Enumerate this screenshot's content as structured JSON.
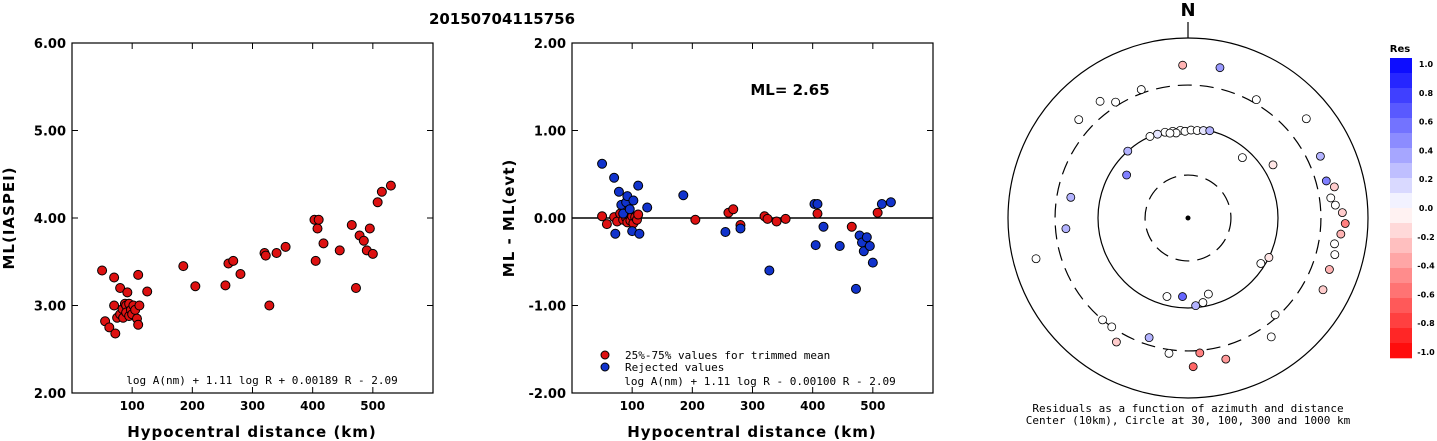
{
  "figure_title": "20150704115756",
  "chart_data": [
    {
      "type": "scatter",
      "id": "left",
      "xlabel": "Hypocentral distance (km)",
      "ylabel": "ML(IASPEI)",
      "xlim": [
        0,
        600
      ],
      "ylim": [
        2.0,
        6.0
      ],
      "xticks": [
        {
          "v": 100,
          "l": "100"
        },
        {
          "v": 200,
          "l": "200"
        },
        {
          "v": 300,
          "l": "300"
        },
        {
          "v": 400,
          "l": "400"
        },
        {
          "v": 500,
          "l": "500"
        }
      ],
      "yticks": [
        {
          "v": 2,
          "l": "2.00"
        },
        {
          "v": 3,
          "l": "3.00"
        },
        {
          "v": 4,
          "l": "4.00"
        },
        {
          "v": 5,
          "l": "5.00"
        },
        {
          "v": 6,
          "l": "6.00"
        }
      ],
      "formula": "log A(nm) + 1.11 log R + 0.00189 R - 2.09",
      "points": [
        [
          50,
          3.4
        ],
        [
          55,
          2.82
        ],
        [
          62,
          2.75
        ],
        [
          70,
          3.32
        ],
        [
          70,
          3.0
        ],
        [
          72,
          2.68
        ],
        [
          75,
          2.86
        ],
        [
          80,
          3.2
        ],
        [
          80,
          2.9
        ],
        [
          84,
          2.96
        ],
        [
          85,
          2.86
        ],
        [
          88,
          3.02
        ],
        [
          90,
          3.0
        ],
        [
          90,
          2.92
        ],
        [
          92,
          3.15
        ],
        [
          95,
          3.02
        ],
        [
          95,
          2.88
        ],
        [
          98,
          2.95
        ],
        [
          100,
          2.9
        ],
        [
          102,
          3.0
        ],
        [
          105,
          2.95
        ],
        [
          108,
          2.85
        ],
        [
          110,
          3.35
        ],
        [
          110,
          2.78
        ],
        [
          112,
          3.0
        ],
        [
          125,
          3.16
        ],
        [
          185,
          3.45
        ],
        [
          205,
          3.22
        ],
        [
          255,
          3.23
        ],
        [
          260,
          3.48
        ],
        [
          268,
          3.51
        ],
        [
          280,
          3.36
        ],
        [
          320,
          3.6
        ],
        [
          322,
          3.57
        ],
        [
          328,
          3.0
        ],
        [
          340,
          3.6
        ],
        [
          355,
          3.67
        ],
        [
          403,
          3.98
        ],
        [
          405,
          3.51
        ],
        [
          408,
          3.88
        ],
        [
          410,
          3.98
        ],
        [
          418,
          3.71
        ],
        [
          445,
          3.63
        ],
        [
          465,
          3.92
        ],
        [
          472,
          3.2
        ],
        [
          478,
          3.8
        ],
        [
          485,
          3.74
        ],
        [
          490,
          3.63
        ],
        [
          495,
          3.88
        ],
        [
          500,
          3.59
        ],
        [
          508,
          4.18
        ],
        [
          515,
          4.3
        ],
        [
          530,
          4.37
        ]
      ]
    },
    {
      "type": "scatter",
      "id": "middle",
      "xlabel": "Hypocentral distance (km)",
      "ylabel": "ML - ML(evt)",
      "xlim": [
        0,
        600
      ],
      "ylim": [
        -2.0,
        2.0
      ],
      "xticks": [
        {
          "v": 100,
          "l": "100"
        },
        {
          "v": 200,
          "l": "200"
        },
        {
          "v": 300,
          "l": "300"
        },
        {
          "v": 400,
          "l": "400"
        },
        {
          "v": 500,
          "l": "500"
        }
      ],
      "yticks": [
        {
          "v": -2,
          "l": "-2.00"
        },
        {
          "v": -1,
          "l": "-1.00"
        },
        {
          "v": 0,
          "l": "0.00"
        },
        {
          "v": 1,
          "l": "1.00"
        },
        {
          "v": 2,
          "l": "2.00"
        }
      ],
      "annotation": "ML= 2.65",
      "formula": "log A(nm) + 1.11 log R - 0.00100 R - 2.09",
      "reference_line": 0,
      "legend": [
        {
          "label": "25%-75% values for trimmed mean",
          "color": "#dd1111"
        },
        {
          "label": "Rejected values",
          "color": "#1133cc"
        }
      ],
      "series": [
        {
          "name": "25%-75% values for trimmed mean",
          "color": "#dd1111",
          "points": [
            [
              50,
              0.02
            ],
            [
              58,
              -0.07
            ],
            [
              70,
              0.01
            ],
            [
              75,
              -0.04
            ],
            [
              80,
              0.05
            ],
            [
              85,
              -0.02
            ],
            [
              88,
              0.1
            ],
            [
              90,
              0.0
            ],
            [
              92,
              -0.05
            ],
            [
              95,
              0.06
            ],
            [
              97,
              -0.03
            ],
            [
              100,
              0.02
            ],
            [
              102,
              -0.06
            ],
            [
              105,
              0.01
            ],
            [
              108,
              -0.02
            ],
            [
              110,
              0.04
            ],
            [
              205,
              -0.02
            ],
            [
              260,
              0.06
            ],
            [
              268,
              0.1
            ],
            [
              280,
              -0.08
            ],
            [
              320,
              0.02
            ],
            [
              325,
              -0.01
            ],
            [
              340,
              -0.04
            ],
            [
              355,
              -0.01
            ],
            [
              408,
              0.05
            ],
            [
              465,
              -0.1
            ],
            [
              508,
              0.06
            ]
          ]
        },
        {
          "name": "Rejected values",
          "color": "#1133cc",
          "points": [
            [
              50,
              0.62
            ],
            [
              70,
              0.46
            ],
            [
              72,
              -0.18
            ],
            [
              78,
              0.3
            ],
            [
              82,
              0.15
            ],
            [
              85,
              0.05
            ],
            [
              90,
              0.18
            ],
            [
              92,
              0.25
            ],
            [
              96,
              0.1
            ],
            [
              100,
              -0.15
            ],
            [
              102,
              0.2
            ],
            [
              110,
              0.37
            ],
            [
              112,
              -0.18
            ],
            [
              125,
              0.12
            ],
            [
              185,
              0.26
            ],
            [
              255,
              -0.16
            ],
            [
              280,
              -0.12
            ],
            [
              328,
              -0.6
            ],
            [
              403,
              0.16
            ],
            [
              405,
              -0.31
            ],
            [
              408,
              0.16
            ],
            [
              418,
              -0.1
            ],
            [
              445,
              -0.32
            ],
            [
              472,
              -0.81
            ],
            [
              478,
              -0.2
            ],
            [
              482,
              -0.28
            ],
            [
              485,
              -0.38
            ],
            [
              490,
              -0.22
            ],
            [
              495,
              -0.32
            ],
            [
              500,
              -0.51
            ],
            [
              515,
              0.16
            ],
            [
              530,
              0.18
            ]
          ]
        }
      ]
    },
    {
      "type": "polar-scatter",
      "id": "azimuth",
      "north_label": "N",
      "caption_line1": "Residuals as a function of azimuth and distance",
      "caption_line2": "Center (10km), Circle at 30, 100, 300 and 1000 km",
      "rings_km": [
        30,
        100,
        300,
        1000
      ],
      "ring_styles": [
        "dashed",
        "solid",
        "dashed",
        "solid"
      ],
      "colorbar": {
        "title": "Res",
        "ticks": [
          "1.0",
          "0.8",
          "0.6",
          "0.4",
          "0.2",
          "0.0",
          "-0.2",
          "-0.4",
          "-0.6",
          "-0.8",
          "-1.0"
        ],
        "max_color": "#0000ff",
        "zero_color": "#ffffff",
        "min_color": "#ff0000"
      },
      "points": [
        {
          "az": -2,
          "dist": 500,
          "res": -0.3
        },
        {
          "az": 12,
          "dist": 510,
          "res": 0.4
        },
        {
          "az": 30,
          "dist": 330,
          "res": 0.0
        },
        {
          "az": 50,
          "dist": 520,
          "res": 0.0
        },
        {
          "az": -20,
          "dist": 330,
          "res": 0.0
        },
        {
          "az": -32,
          "dist": 330,
          "res": 0.0
        },
        {
          "az": -48,
          "dist": 430,
          "res": 0.0
        },
        {
          "az": -37,
          "dist": 420,
          "res": 0.0
        },
        {
          "az": -5,
          "dist": 95,
          "res": 0.0
        },
        {
          "az": -10,
          "dist": 95,
          "res": 0.0
        },
        {
          "az": -15,
          "dist": 97,
          "res": 0.0
        },
        {
          "az": -20,
          "dist": 98,
          "res": 0.1
        },
        {
          "az": -25,
          "dist": 100,
          "res": 0.0
        },
        {
          "az": -8,
          "dist": 90,
          "res": 0.0
        },
        {
          "az": -12,
          "dist": 92,
          "res": 0.0
        },
        {
          "az": -2,
          "dist": 92,
          "res": 0.0
        },
        {
          "az": 2,
          "dist": 95,
          "res": 0.0
        },
        {
          "az": 6,
          "dist": 95,
          "res": 0.0
        },
        {
          "az": 10,
          "dist": 97,
          "res": 0.1
        },
        {
          "az": 14,
          "dist": 100,
          "res": 0.3
        },
        {
          "az": -42,
          "dist": 100,
          "res": 0.3
        },
        {
          "az": -55,
          "dist": 68,
          "res": 0.5
        },
        {
          "az": -80,
          "dist": 210,
          "res": 0.3
        },
        {
          "az": 42,
          "dist": 80,
          "res": 0.0
        },
        {
          "az": 58,
          "dist": 130,
          "res": -0.1
        },
        {
          "az": 75,
          "dist": 390,
          "res": 0.5
        },
        {
          "az": 65,
          "dist": 420,
          "res": 0.3
        },
        {
          "az": 82,
          "dist": 400,
          "res": 0.0
        },
        {
          "az": 85,
          "dist": 440,
          "res": 0.0
        },
        {
          "az": 78,
          "dist": 460,
          "res": -0.2
        },
        {
          "az": 88,
          "dist": 520,
          "res": -0.2
        },
        {
          "az": 92,
          "dist": 560,
          "res": -0.5
        },
        {
          "az": 96,
          "dist": 510,
          "res": -0.3
        },
        {
          "az": 100,
          "dist": 450,
          "res": 0.0
        },
        {
          "az": 104,
          "dist": 480,
          "res": 0.0
        },
        {
          "az": 110,
          "dist": 470,
          "res": -0.3
        },
        {
          "az": 116,
          "dist": 100,
          "res": -0.1
        },
        {
          "az": 122,
          "dist": 90,
          "res": 0.0
        },
        {
          "az": 138,
          "dist": 280,
          "res": 0.0
        },
        {
          "az": 118,
          "dist": 500,
          "res": -0.2
        },
        {
          "az": 145,
          "dist": 410,
          "res": 0.0
        },
        {
          "az": 170,
          "dist": 90,
          "res": 0.0
        },
        {
          "az": 165,
          "dist": 75,
          "res": 0.0
        },
        {
          "az": 175,
          "dist": 95,
          "res": 0.3
        },
        {
          "az": -176,
          "dist": 75,
          "res": 0.6
        },
        {
          "az": -165,
          "dist": 80,
          "res": 0.0
        },
        {
          "az": -172,
          "dist": 330,
          "res": 0.0
        },
        {
          "az": 175,
          "dist": 320,
          "res": -0.5
        },
        {
          "az": 178,
          "dist": 450,
          "res": -0.6
        },
        {
          "az": 165,
          "dist": 420,
          "res": -0.4
        },
        {
          "az": -162,
          "dist": 250,
          "res": 0.3
        },
        {
          "az": -150,
          "dist": 390,
          "res": -0.2
        },
        {
          "az": -145,
          "dist": 300,
          "res": 0.0
        },
        {
          "az": -140,
          "dist": 300,
          "res": 0.0
        },
        {
          "az": -105,
          "dist": 560,
          "res": 0.0
        },
        {
          "az": -95,
          "dist": 230,
          "res": 0.3
        }
      ]
    }
  ]
}
